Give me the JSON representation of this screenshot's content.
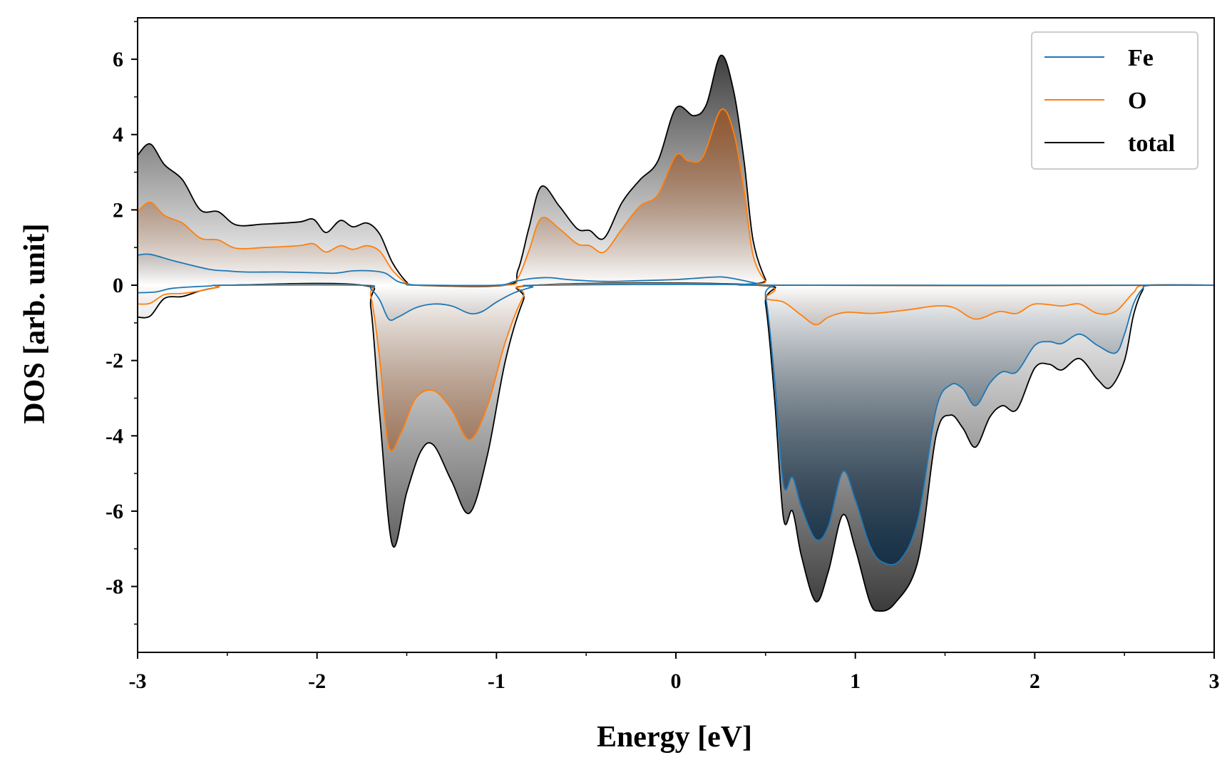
{
  "chart_data": {
    "type": "line",
    "xlabel": "Energy [eV]",
    "ylabel": "DOS [arb. unit]",
    "xlim": [
      -3,
      3
    ],
    "ylim": [
      -9.75,
      7.1
    ],
    "xticks": [
      -3,
      -2,
      -1,
      0,
      1,
      2,
      3
    ],
    "yticks": [
      -8,
      -6,
      -4,
      -2,
      0,
      2,
      4,
      6
    ],
    "grid": false,
    "legend_position": "top-right",
    "series": [
      {
        "name": "Fe",
        "color": "#1f77b4",
        "fill": "#0b2a45",
        "up": [
          [
            -3.0,
            0.8
          ],
          [
            -2.93,
            0.82
          ],
          [
            -2.8,
            0.65
          ],
          [
            -2.6,
            0.42
          ],
          [
            -2.5,
            0.38
          ],
          [
            -2.4,
            0.35
          ],
          [
            -2.2,
            0.35
          ],
          [
            -2.0,
            0.33
          ],
          [
            -1.9,
            0.32
          ],
          [
            -1.8,
            0.38
          ],
          [
            -1.7,
            0.38
          ],
          [
            -1.62,
            0.32
          ],
          [
            -1.55,
            0.1
          ],
          [
            -1.48,
            0.02
          ],
          [
            -1.4,
            0.0
          ],
          [
            -1.0,
            0.0
          ],
          [
            -0.9,
            0.1
          ],
          [
            -0.8,
            0.18
          ],
          [
            -0.7,
            0.2
          ],
          [
            -0.6,
            0.15
          ],
          [
            -0.4,
            0.1
          ],
          [
            -0.2,
            0.12
          ],
          [
            0.0,
            0.15
          ],
          [
            0.1,
            0.18
          ],
          [
            0.25,
            0.22
          ],
          [
            0.35,
            0.15
          ],
          [
            0.45,
            0.05
          ],
          [
            0.55,
            0.0
          ],
          [
            3.0,
            0.0
          ]
        ],
        "down": [
          [
            -3.0,
            -0.2
          ],
          [
            -2.9,
            -0.18
          ],
          [
            -2.8,
            -0.08
          ],
          [
            -2.6,
            -0.02
          ],
          [
            -2.5,
            0.0
          ],
          [
            -1.75,
            0.0
          ],
          [
            -1.7,
            -0.1
          ],
          [
            -1.65,
            -0.4
          ],
          [
            -1.6,
            -0.9
          ],
          [
            -1.55,
            -0.85
          ],
          [
            -1.45,
            -0.6
          ],
          [
            -1.35,
            -0.5
          ],
          [
            -1.25,
            -0.55
          ],
          [
            -1.15,
            -0.75
          ],
          [
            -1.08,
            -0.7
          ],
          [
            -1.0,
            -0.45
          ],
          [
            -0.9,
            -0.2
          ],
          [
            -0.8,
            -0.05
          ],
          [
            -0.75,
            0.0
          ],
          [
            0.45,
            0.0
          ],
          [
            0.5,
            -0.3
          ],
          [
            0.55,
            -2.5
          ],
          [
            0.6,
            -5.3
          ],
          [
            0.65,
            -5.1
          ],
          [
            0.7,
            -5.9
          ],
          [
            0.78,
            -6.75
          ],
          [
            0.85,
            -6.4
          ],
          [
            0.93,
            -4.95
          ],
          [
            1.0,
            -5.7
          ],
          [
            1.08,
            -6.9
          ],
          [
            1.15,
            -7.35
          ],
          [
            1.25,
            -7.3
          ],
          [
            1.35,
            -6.2
          ],
          [
            1.45,
            -3.3
          ],
          [
            1.53,
            -2.65
          ],
          [
            1.6,
            -2.75
          ],
          [
            1.67,
            -3.2
          ],
          [
            1.75,
            -2.6
          ],
          [
            1.82,
            -2.3
          ],
          [
            1.9,
            -2.3
          ],
          [
            2.0,
            -1.6
          ],
          [
            2.08,
            -1.5
          ],
          [
            2.15,
            -1.55
          ],
          [
            2.25,
            -1.3
          ],
          [
            2.35,
            -1.6
          ],
          [
            2.45,
            -1.8
          ],
          [
            2.5,
            -1.3
          ],
          [
            2.55,
            -0.5
          ],
          [
            2.6,
            -0.1
          ],
          [
            2.65,
            0.0
          ],
          [
            3.0,
            0.0
          ]
        ]
      },
      {
        "name": "O",
        "color": "#ff7f0e",
        "fill": "#a0521d",
        "up": [
          [
            -3.0,
            1.95
          ],
          [
            -2.93,
            2.2
          ],
          [
            -2.85,
            1.85
          ],
          [
            -2.75,
            1.65
          ],
          [
            -2.65,
            1.25
          ],
          [
            -2.55,
            1.2
          ],
          [
            -2.45,
            0.98
          ],
          [
            -2.3,
            1.0
          ],
          [
            -2.1,
            1.05
          ],
          [
            -2.02,
            1.1
          ],
          [
            -1.95,
            0.88
          ],
          [
            -1.87,
            1.05
          ],
          [
            -1.8,
            0.95
          ],
          [
            -1.72,
            1.05
          ],
          [
            -1.65,
            0.9
          ],
          [
            -1.58,
            0.4
          ],
          [
            -1.5,
            0.05
          ],
          [
            -1.45,
            0.0
          ],
          [
            -0.95,
            0.0
          ],
          [
            -0.88,
            0.2
          ],
          [
            -0.82,
            0.9
          ],
          [
            -0.75,
            1.78
          ],
          [
            -0.65,
            1.5
          ],
          [
            -0.55,
            1.1
          ],
          [
            -0.48,
            1.05
          ],
          [
            -0.4,
            0.88
          ],
          [
            -0.3,
            1.5
          ],
          [
            -0.2,
            2.1
          ],
          [
            -0.1,
            2.4
          ],
          [
            0.0,
            3.45
          ],
          [
            0.07,
            3.3
          ],
          [
            0.15,
            3.4
          ],
          [
            0.25,
            4.65
          ],
          [
            0.32,
            4.1
          ],
          [
            0.38,
            2.5
          ],
          [
            0.43,
            0.8
          ],
          [
            0.5,
            0.1
          ],
          [
            0.55,
            0.0
          ],
          [
            3.0,
            0.0
          ]
        ],
        "down": [
          [
            -3.0,
            -0.5
          ],
          [
            -2.93,
            -0.48
          ],
          [
            -2.85,
            -0.25
          ],
          [
            -2.75,
            -0.22
          ],
          [
            -2.65,
            -0.15
          ],
          [
            -2.55,
            -0.05
          ],
          [
            -2.5,
            0.0
          ],
          [
            -1.75,
            0.0
          ],
          [
            -1.7,
            -0.3
          ],
          [
            -1.65,
            -2.0
          ],
          [
            -1.6,
            -4.3
          ],
          [
            -1.53,
            -3.9
          ],
          [
            -1.45,
            -3.0
          ],
          [
            -1.35,
            -2.8
          ],
          [
            -1.25,
            -3.3
          ],
          [
            -1.15,
            -4.1
          ],
          [
            -1.05,
            -3.2
          ],
          [
            -0.95,
            -1.5
          ],
          [
            -0.85,
            -0.3
          ],
          [
            -0.78,
            0.0
          ],
          [
            0.45,
            0.0
          ],
          [
            0.5,
            -0.35
          ],
          [
            0.6,
            -0.45
          ],
          [
            0.7,
            -0.8
          ],
          [
            0.78,
            -1.05
          ],
          [
            0.85,
            -0.85
          ],
          [
            0.95,
            -0.72
          ],
          [
            1.1,
            -0.75
          ],
          [
            1.3,
            -0.65
          ],
          [
            1.45,
            -0.55
          ],
          [
            1.55,
            -0.6
          ],
          [
            1.67,
            -0.9
          ],
          [
            1.8,
            -0.7
          ],
          [
            1.9,
            -0.75
          ],
          [
            2.0,
            -0.5
          ],
          [
            2.15,
            -0.55
          ],
          [
            2.25,
            -0.5
          ],
          [
            2.35,
            -0.75
          ],
          [
            2.45,
            -0.7
          ],
          [
            2.55,
            -0.2
          ],
          [
            2.62,
            0.0
          ],
          [
            3.0,
            0.0
          ]
        ]
      },
      {
        "name": "total",
        "color": "#000000",
        "fill": "#3a3a3a",
        "up": [
          [
            -3.0,
            3.45
          ],
          [
            -2.93,
            3.75
          ],
          [
            -2.85,
            3.2
          ],
          [
            -2.75,
            2.8
          ],
          [
            -2.65,
            2.0
          ],
          [
            -2.55,
            1.95
          ],
          [
            -2.45,
            1.6
          ],
          [
            -2.3,
            1.62
          ],
          [
            -2.1,
            1.68
          ],
          [
            -2.02,
            1.75
          ],
          [
            -1.95,
            1.4
          ],
          [
            -1.87,
            1.72
          ],
          [
            -1.8,
            1.55
          ],
          [
            -1.72,
            1.65
          ],
          [
            -1.65,
            1.35
          ],
          [
            -1.58,
            0.6
          ],
          [
            -1.5,
            0.08
          ],
          [
            -1.45,
            0.0
          ],
          [
            -0.95,
            0.0
          ],
          [
            -0.88,
            0.4
          ],
          [
            -0.82,
            1.5
          ],
          [
            -0.75,
            2.62
          ],
          [
            -0.65,
            2.1
          ],
          [
            -0.55,
            1.5
          ],
          [
            -0.48,
            1.45
          ],
          [
            -0.4,
            1.25
          ],
          [
            -0.3,
            2.2
          ],
          [
            -0.2,
            2.8
          ],
          [
            -0.1,
            3.3
          ],
          [
            0.0,
            4.7
          ],
          [
            0.1,
            4.5
          ],
          [
            0.17,
            4.8
          ],
          [
            0.25,
            6.1
          ],
          [
            0.32,
            5.2
          ],
          [
            0.38,
            3.3
          ],
          [
            0.43,
            1.2
          ],
          [
            0.5,
            0.15
          ],
          [
            0.55,
            0.0
          ],
          [
            3.0,
            0.0
          ]
        ],
        "down": [
          [
            -3.0,
            -0.85
          ],
          [
            -2.93,
            -0.82
          ],
          [
            -2.85,
            -0.35
          ],
          [
            -2.75,
            -0.3
          ],
          [
            -2.65,
            -0.15
          ],
          [
            -2.55,
            -0.05
          ],
          [
            -2.5,
            0.0
          ],
          [
            -1.75,
            0.0
          ],
          [
            -1.7,
            -0.6
          ],
          [
            -1.65,
            -3.5
          ],
          [
            -1.58,
            -6.9
          ],
          [
            -1.5,
            -5.5
          ],
          [
            -1.42,
            -4.4
          ],
          [
            -1.35,
            -4.25
          ],
          [
            -1.25,
            -5.2
          ],
          [
            -1.15,
            -6.05
          ],
          [
            -1.05,
            -4.5
          ],
          [
            -0.95,
            -2.0
          ],
          [
            -0.85,
            -0.4
          ],
          [
            -0.78,
            0.0
          ],
          [
            0.45,
            0.0
          ],
          [
            0.5,
            -0.5
          ],
          [
            0.55,
            -3.0
          ],
          [
            0.6,
            -6.2
          ],
          [
            0.65,
            -6.0
          ],
          [
            0.7,
            -7.2
          ],
          [
            0.78,
            -8.4
          ],
          [
            0.85,
            -7.6
          ],
          [
            0.93,
            -6.1
          ],
          [
            1.0,
            -7.0
          ],
          [
            1.08,
            -8.4
          ],
          [
            1.13,
            -8.65
          ],
          [
            1.22,
            -8.45
          ],
          [
            1.35,
            -7.3
          ],
          [
            1.45,
            -4.0
          ],
          [
            1.53,
            -3.45
          ],
          [
            1.6,
            -3.8
          ],
          [
            1.67,
            -4.3
          ],
          [
            1.75,
            -3.5
          ],
          [
            1.82,
            -3.2
          ],
          [
            1.9,
            -3.3
          ],
          [
            2.0,
            -2.2
          ],
          [
            2.08,
            -2.1
          ],
          [
            2.15,
            -2.25
          ],
          [
            2.25,
            -1.95
          ],
          [
            2.35,
            -2.5
          ],
          [
            2.42,
            -2.72
          ],
          [
            2.5,
            -2.0
          ],
          [
            2.55,
            -0.8
          ],
          [
            2.6,
            -0.15
          ],
          [
            2.65,
            0.0
          ],
          [
            3.0,
            0.0
          ]
        ]
      }
    ]
  }
}
